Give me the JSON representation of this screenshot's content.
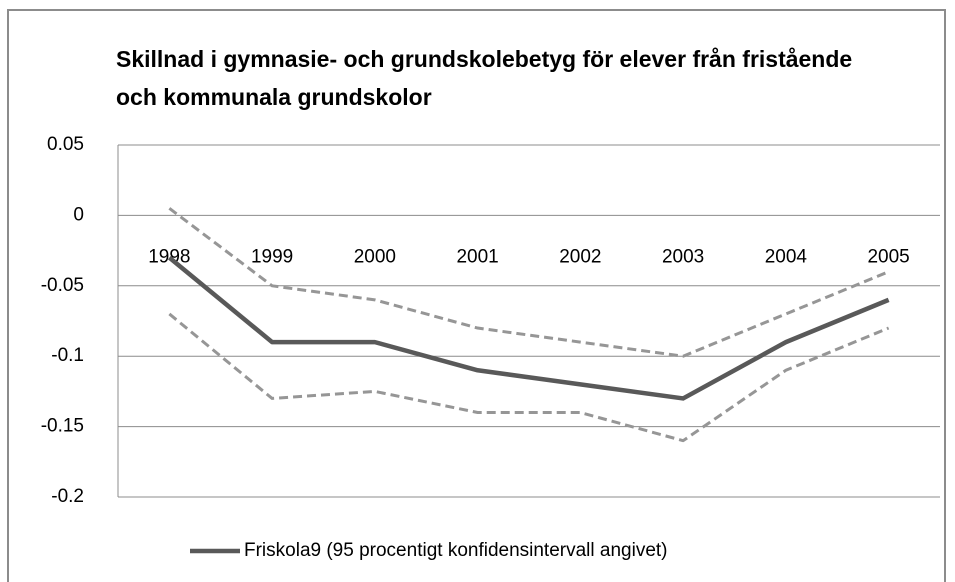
{
  "chart_data": {
    "type": "line",
    "title": "Skillnad i gymnasie- och grundskolebetyg för elever från fristående och kommunala  grundskolor",
    "categories": [
      "1998",
      "1999",
      "2000",
      "2001",
      "2002",
      "2003",
      "2004",
      "2005"
    ],
    "series": [
      {
        "name": "Friskola9 (95 procentigt konfidensintervall angivet)",
        "color": "#595959",
        "values": [
          -0.03,
          -0.09,
          -0.09,
          -0.11,
          -0.12,
          -0.13,
          -0.09,
          -0.06
        ]
      },
      {
        "color": "#969696",
        "dashed": true,
        "values": [
          0.005,
          -0.05,
          -0.06,
          -0.08,
          -0.09,
          -0.1,
          -0.07,
          -0.04
        ]
      },
      {
        "color": "#969696",
        "dashed": true,
        "values": [
          -0.07,
          -0.13,
          -0.125,
          -0.14,
          -0.14,
          -0.16,
          -0.11,
          -0.08
        ]
      }
    ],
    "ylim": [
      -0.2,
      0.05
    ],
    "yticks": [
      -0.2,
      -0.15,
      -0.1,
      -0.05,
      0,
      0.05
    ],
    "grid": true
  }
}
